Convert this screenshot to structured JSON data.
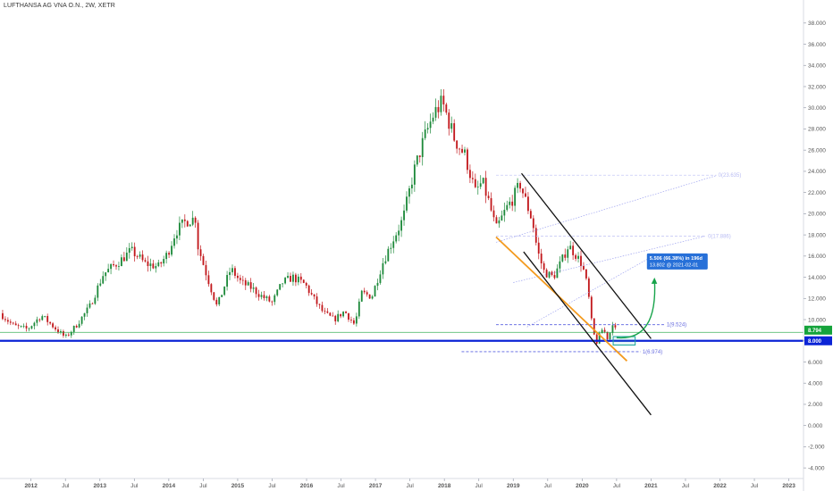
{
  "header": {
    "title": "LUFTHANSA AG VNA O.N., 2W, XETR"
  },
  "chart_data": {
    "type": "candlestick",
    "title": "LUFTHANSA AG VNA O.N., 2W, XETR",
    "x_ticks": [
      "2012",
      "Jul",
      "2013",
      "Jul",
      "2014",
      "Jul",
      "2015",
      "Jul",
      "2016",
      "Jul",
      "2017",
      "Jul",
      "2018",
      "Jul",
      "2019",
      "Jul",
      "2020",
      "Jul",
      "2021",
      "Jul",
      "2022",
      "Jul",
      "2023"
    ],
    "x_tick_times": [
      2012.0,
      2012.5,
      2013.0,
      2013.5,
      2014.0,
      2014.5,
      2015.0,
      2015.5,
      2016.0,
      2016.5,
      2017.0,
      2017.5,
      2018.0,
      2018.5,
      2019.0,
      2019.5,
      2020.0,
      2020.5,
      2021.0,
      2021.5,
      2022.0,
      2022.5,
      2023.0
    ],
    "y_ticks": [
      "38.000",
      "36.000",
      "34.000",
      "32.000",
      "30.000",
      "28.000",
      "26.000",
      "24.000",
      "22.000",
      "20.000",
      "18.000",
      "16.000",
      "14.000",
      "12.000",
      "10.000",
      "8.000",
      "6.000",
      "4.000",
      "2.000",
      "0.000",
      "-2.000",
      "-4.000"
    ],
    "y_tick_values": [
      38,
      36,
      34,
      32,
      30,
      28,
      26,
      24,
      22,
      20,
      18,
      16,
      14,
      12,
      10,
      8,
      6,
      4,
      2,
      0,
      -2,
      -4
    ],
    "xlim": [
      2011.55,
      2023.2
    ],
    "ylim": [
      -5,
      39.5
    ],
    "price_keypoints": [
      [
        2011.55,
        10.6
      ],
      [
        2011.75,
        9.4
      ],
      [
        2011.95,
        9.1
      ],
      [
        2012.15,
        10.4
      ],
      [
        2012.35,
        9.2
      ],
      [
        2012.5,
        8.3
      ],
      [
        2012.65,
        9.4
      ],
      [
        2012.85,
        11.2
      ],
      [
        2013.05,
        14.3
      ],
      [
        2013.3,
        15.6
      ],
      [
        2013.45,
        16.5
      ],
      [
        2013.55,
        16.0
      ],
      [
        2013.65,
        15.3
      ],
      [
        2013.85,
        15.0
      ],
      [
        2013.98,
        16.2
      ],
      [
        2014.1,
        18.3
      ],
      [
        2014.25,
        19.3
      ],
      [
        2014.4,
        19.6
      ],
      [
        2014.42,
        17.0
      ],
      [
        2014.55,
        14.2
      ],
      [
        2014.7,
        11.2
      ],
      [
        2014.82,
        13.4
      ],
      [
        2014.9,
        14.8
      ],
      [
        2015.05,
        13.5
      ],
      [
        2015.2,
        13.0
      ],
      [
        2015.35,
        12.2
      ],
      [
        2015.5,
        11.6
      ],
      [
        2015.65,
        13.5
      ],
      [
        2015.8,
        14.0
      ],
      [
        2015.98,
        13.3
      ],
      [
        2016.1,
        12.0
      ],
      [
        2016.25,
        10.6
      ],
      [
        2016.4,
        10.0
      ],
      [
        2016.55,
        10.8
      ],
      [
        2016.7,
        9.5
      ],
      [
        2016.8,
        12.5
      ],
      [
        2016.95,
        12.2
      ],
      [
        2017.1,
        15.3
      ],
      [
        2017.25,
        17.5
      ],
      [
        2017.4,
        19.5
      ],
      [
        2017.55,
        23.8
      ],
      [
        2017.7,
        27.0
      ],
      [
        2017.85,
        29.5
      ],
      [
        2017.97,
        30.5
      ],
      [
        2018.05,
        29.0
      ],
      [
        2018.15,
        27.0
      ],
      [
        2018.3,
        25.5
      ],
      [
        2018.45,
        22.0
      ],
      [
        2018.55,
        23.0
      ],
      [
        2018.65,
        21.0
      ],
      [
        2018.75,
        18.5
      ],
      [
        2018.9,
        20.5
      ],
      [
        2019.0,
        21.5
      ],
      [
        2019.1,
        22.8
      ],
      [
        2019.2,
        20.8
      ],
      [
        2019.28,
        19.3
      ],
      [
        2019.35,
        16.5
      ],
      [
        2019.45,
        14.5
      ],
      [
        2019.58,
        14.0
      ],
      [
        2019.7,
        15.5
      ],
      [
        2019.8,
        17.0
      ],
      [
        2019.9,
        16.2
      ],
      [
        2020.0,
        15.2
      ],
      [
        2020.08,
        13.0
      ],
      [
        2020.14,
        9.6
      ],
      [
        2020.2,
        7.7
      ],
      [
        2020.3,
        9.2
      ],
      [
        2020.38,
        8.1
      ],
      [
        2020.44,
        9.8
      ],
      [
        2020.5,
        8.7
      ]
    ],
    "horizontal_lines": [
      {
        "name": "support",
        "value": 8.0,
        "color": "#0b24d6",
        "label": "8.000"
      },
      {
        "name": "last-price",
        "value": 8.794,
        "color": "#15a33b",
        "label": "8.794"
      }
    ],
    "channel_upper": [
      [
        2019.12,
        23.8
      ],
      [
        2021.0,
        8.2
      ]
    ],
    "channel_lower": [
      [
        2019.15,
        16.4
      ],
      [
        2021.0,
        1.0
      ]
    ],
    "orange_trend": [
      [
        2018.75,
        17.8
      ],
      [
        2020.65,
        6.1
      ]
    ],
    "fib_levels": [
      {
        "label": "1(9.524)",
        "value": 9.524,
        "x0": 2018.75,
        "x1": 2021.2,
        "faint": false
      },
      {
        "label": "1(6.974)",
        "value": 6.974,
        "x0": 2018.25,
        "x1": 2020.85,
        "faint": false
      },
      {
        "label": "0(23.635)",
        "value": 23.635,
        "x0": 2018.75,
        "x1": 2021.95,
        "faint": true
      },
      {
        "label": "0(17.886)",
        "value": 17.886,
        "x0": 2018.75,
        "x1": 2021.8,
        "faint": true
      }
    ],
    "fib_diagonals": [
      [
        [
          2018.75,
          17.3
        ],
        [
          2021.95,
          23.6
        ]
      ],
      [
        [
          2019.0,
          13.5
        ],
        [
          2021.8,
          17.9
        ]
      ],
      [
        [
          2019.2,
          9.3
        ],
        [
          2021.0,
          15.9
        ]
      ]
    ],
    "projection_arrow": [
      [
        2020.5,
        8.3
      ],
      [
        2021.05,
        13.8
      ]
    ],
    "projection_box": [
      [
        2020.45,
        7.6
      ],
      [
        2020.77,
        8.4
      ]
    ],
    "annotation": {
      "line1": "5.506 (66.38%) in 196d",
      "line2": "13.802 @ 2021-02-01",
      "color": "#2770d8"
    },
    "up_color": "#1e8a3b",
    "down_color": "#c2181c"
  }
}
